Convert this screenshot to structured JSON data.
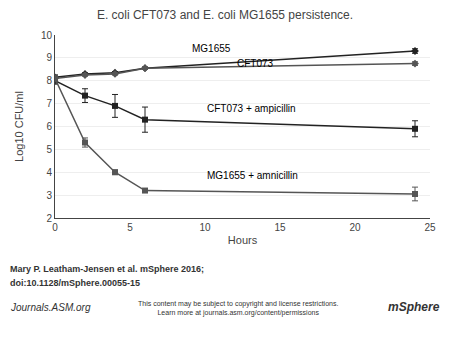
{
  "chart_data": {
    "type": "line",
    "title": "E. coli CFT073 and E. coli MG1655 persistence.",
    "x_label": "Hours",
    "y_label": "Log10 CFU/ml",
    "x": [
      0,
      2,
      4,
      6,
      24
    ],
    "series": [
      {
        "name": "MG1655",
        "color": "#222222",
        "marker": "diamond",
        "line_style": "solid",
        "values": [
          8.15,
          8.3,
          8.35,
          8.55,
          9.3
        ],
        "errors": [
          0.1,
          0.05,
          0.05,
          0.05,
          0.1
        ],
        "label_at": {
          "x": 9.0,
          "y": 9.1
        }
      },
      {
        "name": "CFT073",
        "color": "#555555",
        "marker": "diamond",
        "line_style": "solid",
        "values": [
          8.1,
          8.25,
          8.3,
          8.55,
          8.75
        ],
        "errors": [
          0.1,
          0.05,
          0.05,
          0.05,
          0.08
        ],
        "label_at": {
          "x": 12.0,
          "y": 8.42
        }
      },
      {
        "name": "CFT073 + ampicillin",
        "color": "#222222",
        "marker": "square",
        "line_style": "solid",
        "values": [
          8.0,
          7.35,
          6.9,
          6.3,
          5.9
        ],
        "errors": [
          0.15,
          0.3,
          0.5,
          0.55,
          0.35
        ],
        "label_at": {
          "x": 10.0,
          "y": 6.45
        }
      },
      {
        "name": "MG1655 + amnicillin",
        "color": "#555555",
        "marker": "square",
        "line_style": "solid",
        "values": [
          8.1,
          5.3,
          4.0,
          3.2,
          3.05
        ],
        "errors": [
          0.15,
          0.2,
          0.1,
          0.05,
          0.3
        ],
        "label_at": {
          "x": 10.0,
          "y": 3.55
        }
      }
    ],
    "xlim": [
      0,
      25
    ],
    "ylim": [
      2,
      10
    ],
    "xticks": [
      0,
      5,
      10,
      15,
      20,
      25
    ],
    "yticks": [
      2,
      3,
      4,
      5,
      6,
      7,
      8,
      9,
      10
    ],
    "grid": "y",
    "annotations": [
      {
        "text": "Mary P. Leatham-Jensen et al. mSphere 2016;"
      },
      {
        "text": "doi:10.1128/mSphere.00055-15"
      },
      {
        "text": "Journals.ASM.org"
      },
      {
        "text": "This content may be subject to copyright and license restrictions.\nLearn more at journals.asm.org/content/permissions"
      },
      {
        "text": "mSphere"
      }
    ]
  }
}
